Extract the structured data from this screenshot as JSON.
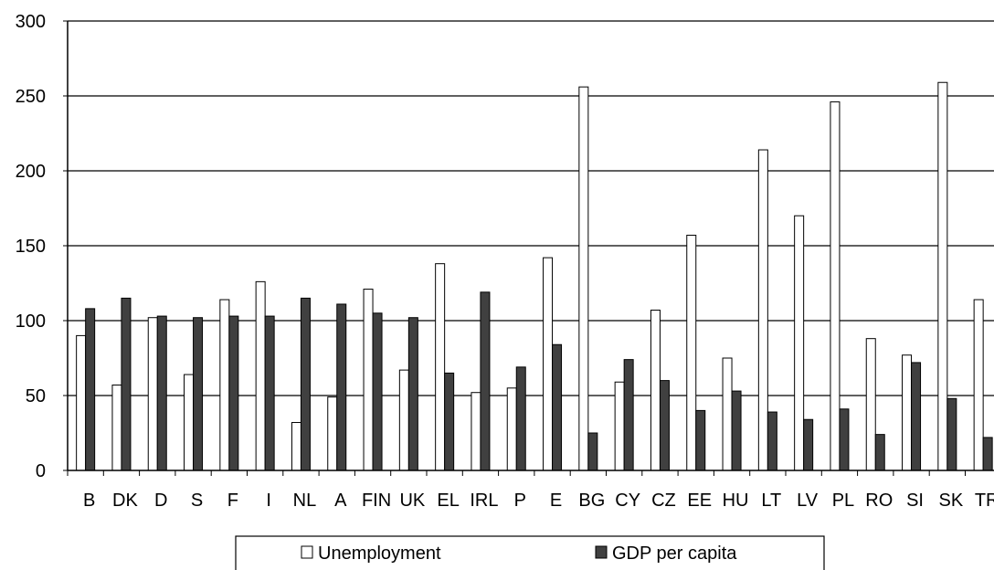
{
  "chart_data": {
    "type": "bar",
    "title": "",
    "xlabel": "",
    "ylabel": "",
    "ylim": [
      0,
      300
    ],
    "yticks": [
      0,
      50,
      100,
      150,
      200,
      250,
      300
    ],
    "grid": true,
    "legend_position": "bottom",
    "categories": [
      "B",
      "DK",
      "D",
      "S",
      "F",
      "I",
      "NL",
      "A",
      "FIN",
      "UK",
      "EL",
      "IRL",
      "P",
      "E",
      "BG",
      "CY",
      "CZ",
      "EE",
      "HU",
      "LT",
      "LV",
      "PL",
      "RO",
      "SI",
      "SK",
      "TR"
    ],
    "series": [
      {
        "name": "Unemployment",
        "color": "#ffffff",
        "values": [
          90,
          57,
          102,
          64,
          114,
          126,
          32,
          49,
          121,
          67,
          138,
          52,
          55,
          142,
          256,
          59,
          107,
          157,
          75,
          214,
          170,
          246,
          88,
          77,
          259,
          114
        ]
      },
      {
        "name": "GDP per capita",
        "color": "#404040",
        "values": [
          108,
          115,
          103,
          102,
          103,
          103,
          115,
          111,
          105,
          102,
          65,
          119,
          69,
          84,
          25,
          74,
          60,
          40,
          53,
          39,
          34,
          41,
          24,
          72,
          48,
          22
        ]
      }
    ]
  }
}
